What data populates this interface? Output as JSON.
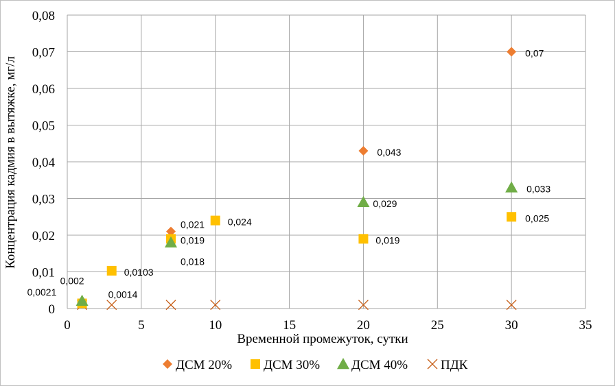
{
  "chart_data": {
    "type": "scatter",
    "xlabel": "Временной промежуток, сутки",
    "ylabel": "Концентрация кадмия в вытяжке, мг/л",
    "xlim": [
      0,
      35
    ],
    "ylim": [
      0,
      0.08
    ],
    "x_ticks": [
      "0",
      "5",
      "10",
      "15",
      "20",
      "25",
      "30",
      "35"
    ],
    "y_ticks": [
      "0",
      "0,01",
      "0,02",
      "0,03",
      "0,04",
      "0,05",
      "0,06",
      "0,07",
      "0,08"
    ],
    "grid": true,
    "legend_position": "bottom",
    "series": [
      {
        "name": "ДСМ 20%",
        "marker": "diamond",
        "color": "#ed7d31",
        "points": [
          {
            "x": 1,
            "y": 0.002,
            "label": "0,002"
          },
          {
            "x": 7,
            "y": 0.021,
            "label": "0,021"
          },
          {
            "x": 20,
            "y": 0.043,
            "label": "0,043"
          },
          {
            "x": 30,
            "y": 0.07,
            "label": "0,07"
          }
        ]
      },
      {
        "name": "ДСМ 30%",
        "marker": "square",
        "color": "#ffc000",
        "points": [
          {
            "x": 1,
            "y": 0.0014,
            "label": "0,0014"
          },
          {
            "x": 3,
            "y": 0.0103,
            "label": "0,0103"
          },
          {
            "x": 7,
            "y": 0.019,
            "label": "0,019"
          },
          {
            "x": 10,
            "y": 0.024,
            "label": "0,024"
          },
          {
            "x": 20,
            "y": 0.019,
            "label": "0,019"
          },
          {
            "x": 30,
            "y": 0.025,
            "label": "0,025"
          }
        ]
      },
      {
        "name": "ДСМ 40%",
        "marker": "triangle",
        "color": "#70ad47",
        "points": [
          {
            "x": 1,
            "y": 0.0021,
            "label": "0,0021"
          },
          {
            "x": 7,
            "y": 0.018,
            "label": "0,018"
          },
          {
            "x": 20,
            "y": 0.029,
            "label": "0,029"
          },
          {
            "x": 30,
            "y": 0.033,
            "label": "0,033"
          }
        ]
      },
      {
        "name": "ПДК",
        "marker": "x",
        "color": "#c55a11",
        "points": [
          {
            "x": 1,
            "y": 0.001
          },
          {
            "x": 3,
            "y": 0.001
          },
          {
            "x": 7,
            "y": 0.001
          },
          {
            "x": 10,
            "y": 0.001
          },
          {
            "x": 20,
            "y": 0.001
          },
          {
            "x": 30,
            "y": 0.001
          }
        ]
      }
    ]
  }
}
